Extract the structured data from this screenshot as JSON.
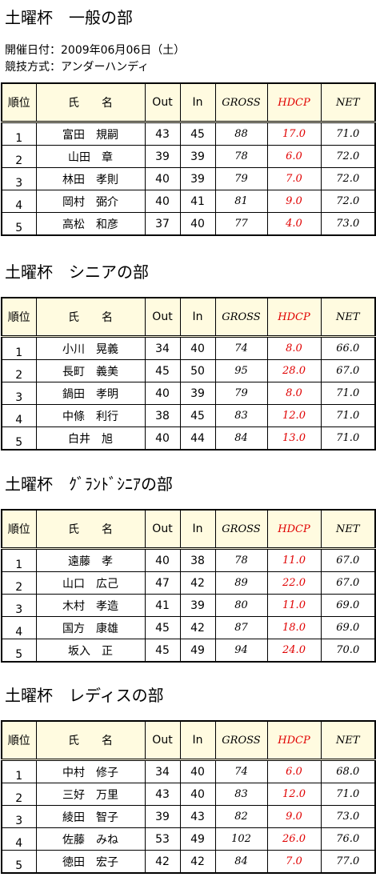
{
  "info": {
    "date": "開催日付：2009年06月06日（土）",
    "format": "競技方式：アンダーハンディ"
  },
  "header": [
    "順位",
    "氏　　名",
    "Out",
    "In",
    "GROSS",
    "HDCP",
    "NET"
  ],
  "sections": [
    {
      "title": "土曜杯　一般の部",
      "rows": [
        [
          "1",
          "富田　規嗣",
          "43",
          "45",
          "88",
          "17.0",
          "71.0"
        ],
        [
          "2",
          "山田　章",
          "39",
          "39",
          "78",
          "6.0",
          "72.0"
        ],
        [
          "3",
          "林田　孝則",
          "40",
          "39",
          "79",
          "7.0",
          "72.0"
        ],
        [
          "4",
          "岡村　弼介",
          "40",
          "41",
          "81",
          "9.0",
          "72.0"
        ],
        [
          "5",
          "高松　和彦",
          "37",
          "40",
          "77",
          "4.0",
          "73.0"
        ]
      ]
    },
    {
      "title": "土曜杯　シニアの部",
      "rows": [
        [
          "1",
          "小川　晃義",
          "34",
          "40",
          "74",
          "8.0",
          "66.0"
        ],
        [
          "2",
          "長町　義美",
          "45",
          "50",
          "95",
          "28.0",
          "67.0"
        ],
        [
          "3",
          "鍋田　孝明",
          "40",
          "39",
          "79",
          "8.0",
          "71.0"
        ],
        [
          "4",
          "中條　利行",
          "38",
          "45",
          "83",
          "12.0",
          "71.0"
        ],
        [
          "5",
          "白井　旭",
          "40",
          "44",
          "84",
          "13.0",
          "71.0"
        ]
      ]
    },
    {
      "title": "土曜杯　ｸﾞﾗﾝﾄﾞｼﾆｱの部",
      "rows": [
        [
          "1",
          "遠藤　孝",
          "40",
          "38",
          "78",
          "11.0",
          "67.0"
        ],
        [
          "2",
          "山口　広己",
          "47",
          "42",
          "89",
          "22.0",
          "67.0"
        ],
        [
          "3",
          "木村　孝造",
          "41",
          "39",
          "80",
          "11.0",
          "69.0"
        ],
        [
          "4",
          "国方　康雄",
          "45",
          "42",
          "87",
          "18.0",
          "69.0"
        ],
        [
          "5",
          "坂入　正",
          "45",
          "49",
          "94",
          "24.0",
          "70.0"
        ]
      ]
    },
    {
      "title": "土曜杯　レディスの部",
      "rows": [
        [
          "1",
          "中村　修子",
          "34",
          "40",
          "74",
          "6.0",
          "68.0"
        ],
        [
          "2",
          "三好　万里",
          "43",
          "40",
          "83",
          "12.0",
          "71.0"
        ],
        [
          "3",
          "綾田　智子",
          "39",
          "43",
          "82",
          "9.0",
          "73.0"
        ],
        [
          "4",
          "佐藤　みね",
          "53",
          "49",
          "102",
          "26.0",
          "76.0"
        ],
        [
          "5",
          "徳田　宏子",
          "42",
          "42",
          "84",
          "7.0",
          "77.0"
        ]
      ]
    }
  ]
}
